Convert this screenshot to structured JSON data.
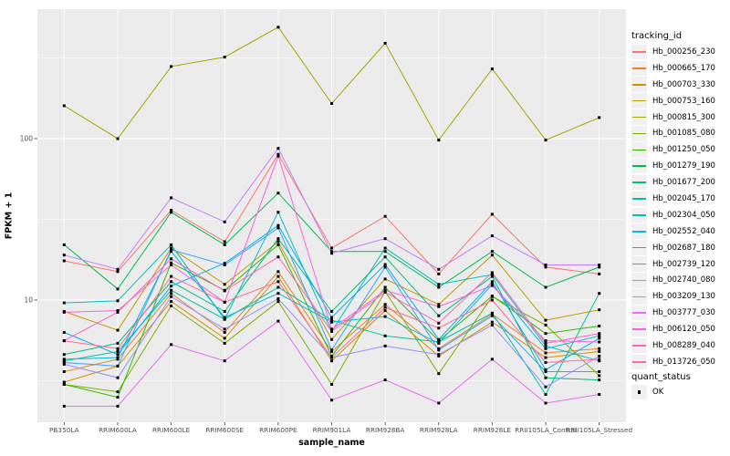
{
  "chart_data": {
    "type": "line",
    "title": "",
    "xlabel": "sample_name",
    "ylabel": "FPKM + 1",
    "y_scale": "log10",
    "y_ticks": [
      100,
      10
    ],
    "y_minor_breaks": [
      316.2,
      31.62,
      3.162
    ],
    "ylim": [
      2.0,
      560
    ],
    "grid": true,
    "panel_bg": "#EBEBEB",
    "grid_color": "#FFFFFF",
    "tick_color": "#333333",
    "axis_text_color": "#4D4D4D",
    "point_marker": "small-black-square",
    "categories": [
      "PB350LA",
      "RRIM600LA",
      "RRIM600LE",
      "RRIM600SE",
      "RRIM600PE",
      "RRIM901LA",
      "RRIM928BA",
      "RRIM928LA",
      "RRIM928LE",
      "RRII105LA_Control",
      "RRII105LA_Stressed"
    ],
    "legend": {
      "position": "right",
      "color_title": "tracking_id",
      "shape_title": "quant_status",
      "shape_items": [
        {
          "label": "OK",
          "marker": "black-square"
        }
      ]
    },
    "series": [
      {
        "name": "Hb_000256_230",
        "color": "#F8766D",
        "values": [
          17.5,
          15,
          36,
          23,
          80,
          21,
          33,
          14.5,
          34,
          16,
          14.5
        ]
      },
      {
        "name": "Hb_000665_170",
        "color": "#E88526",
        "values": [
          3.6,
          4.3,
          11,
          6.3,
          15,
          4.8,
          9.4,
          5.0,
          8.2,
          4.7,
          5.0
        ]
      },
      {
        "name": "Hb_000703_330",
        "color": "#D89000",
        "values": [
          3.1,
          3.9,
          9.8,
          5.8,
          14,
          4.2,
          8.6,
          4.5,
          7.3,
          4.4,
          4.8
        ]
      },
      {
        "name": "Hb_000753_160",
        "color": "#C09B00",
        "values": [
          8.5,
          6.5,
          21,
          12.5,
          23,
          5.7,
          13.5,
          9.4,
          19,
          7.5,
          8.7
        ]
      },
      {
        "name": "Hb_000815_300",
        "color": "#A3A500",
        "values": [
          160,
          100,
          280,
          320,
          490,
          165,
          390,
          98,
          270,
          98,
          135
        ]
      },
      {
        "name": "Hb_001085_080",
        "color": "#7CAE00",
        "values": [
          3.0,
          2.7,
          9.2,
          5.4,
          9.8,
          3.0,
          11.3,
          3.5,
          10.5,
          7.0,
          3.4
        ]
      },
      {
        "name": "Hb_001250_050",
        "color": "#39B600",
        "values": [
          3.0,
          2.5,
          17,
          11.5,
          22,
          4.5,
          12,
          5.6,
          10.6,
          6.2,
          6.9
        ]
      },
      {
        "name": "Hb_001279_190",
        "color": "#00BB4E",
        "values": [
          22,
          11.7,
          35,
          22,
          46,
          20,
          20,
          12,
          20,
          12,
          16
        ]
      },
      {
        "name": "Hb_001677_200",
        "color": "#00BF7D",
        "values": [
          4.6,
          5.4,
          13,
          8.5,
          24,
          8.5,
          18.5,
          8.0,
          14,
          3.3,
          3.2
        ]
      },
      {
        "name": "Hb_002045_170",
        "color": "#00C1A3",
        "values": [
          4.2,
          4.8,
          11.5,
          7.6,
          12,
          7.5,
          6.0,
          5.5,
          8.3,
          2.6,
          11
        ]
      },
      {
        "name": "Hb_002304_050",
        "color": "#00BFC4",
        "values": [
          9.6,
          9.9,
          22,
          7.6,
          35,
          6.4,
          21,
          12.5,
          14.4,
          5.2,
          4.2
        ]
      },
      {
        "name": "Hb_002552_040",
        "color": "#00BAE0",
        "values": [
          4.3,
          4.4,
          20,
          7.8,
          11,
          7.3,
          7.9,
          5.4,
          12.5,
          5.0,
          6.0
        ]
      },
      {
        "name": "Hb_002687_180",
        "color": "#00B0F6",
        "values": [
          6.3,
          4.6,
          12.2,
          16.9,
          29,
          7.8,
          16.6,
          5.7,
          13,
          3.7,
          5.8
        ]
      },
      {
        "name": "Hb_002739_120",
        "color": "#35A2FF",
        "values": [
          4.1,
          3.9,
          20.5,
          16.5,
          28,
          4.9,
          16,
          4.9,
          8.0,
          3.6,
          3.6
        ]
      },
      {
        "name": "Hb_002740_080",
        "color": "#9590FF",
        "values": [
          4.0,
          3.3,
          10.5,
          6.6,
          10.2,
          4.4,
          5.2,
          4.6,
          7.0,
          2.9,
          4.5
        ]
      },
      {
        "name": "Hb_003209_130",
        "color": "#C77CFF",
        "values": [
          19,
          15.5,
          43,
          30.5,
          87,
          19.5,
          24,
          15.5,
          25,
          16.5,
          16.5
        ]
      },
      {
        "name": "Hb_003777_030",
        "color": "#E76BF3",
        "values": [
          2.2,
          2.2,
          5.3,
          4.2,
          7.4,
          2.4,
          3.2,
          2.3,
          4.3,
          2.3,
          2.6
        ]
      },
      {
        "name": "Hb_006120_050",
        "color": "#FA62DB",
        "values": [
          8.4,
          8.6,
          16.5,
          9.7,
          78,
          6.6,
          11.5,
          9.1,
          12.3,
          5.6,
          5.5
        ]
      },
      {
        "name": "Hb_008289_040",
        "color": "#FF62BC",
        "values": [
          5.6,
          8.4,
          18,
          11.4,
          18.5,
          6.4,
          11.2,
          7.2,
          14.8,
          5.4,
          6.2
        ]
      },
      {
        "name": "Hb_013726_050",
        "color": "#FF6A98",
        "values": [
          5.6,
          5.0,
          14,
          9.7,
          13,
          4.4,
          9.0,
          6.7,
          10,
          4.1,
          4.3
        ]
      }
    ]
  }
}
